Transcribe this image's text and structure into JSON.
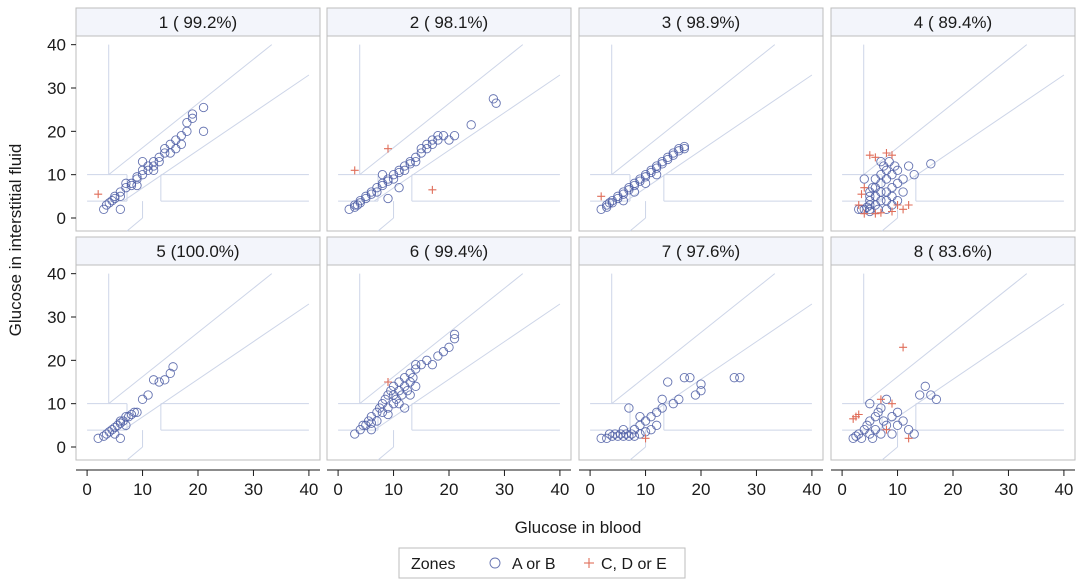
{
  "chart_data": {
    "type": "scatter",
    "layout": "facet-grid 2 rows x 4 columns",
    "xlabel": "Glucose in blood",
    "ylabel": "Glucose in interstitial fluid",
    "xlim": [
      -2,
      42
    ],
    "ylim": [
      -3,
      42
    ],
    "xticks": [
      0,
      10,
      20,
      30,
      40
    ],
    "yticks": [
      0,
      10,
      20,
      30,
      40
    ],
    "legend": {
      "title": "Zones",
      "placement": "bottom-center",
      "entries": [
        {
          "label": "A or B",
          "marker": "circle",
          "color": "#4a5aa3"
        },
        {
          "label": "C, D or E",
          "marker": "plus",
          "color": "#e06e5a"
        }
      ]
    },
    "panels": [
      {
        "title": "1 ( 99.2%)",
        "ok": [
          [
            3,
            2
          ],
          [
            3.5,
            3
          ],
          [
            4,
            3.5
          ],
          [
            4.5,
            4
          ],
          [
            5,
            4.5
          ],
          [
            5,
            5
          ],
          [
            6,
            5
          ],
          [
            6,
            6
          ],
          [
            7,
            7
          ],
          [
            7,
            8
          ],
          [
            8,
            7.5
          ],
          [
            8,
            8
          ],
          [
            9,
            9
          ],
          [
            9,
            9.5
          ],
          [
            10,
            10
          ],
          [
            10,
            11
          ],
          [
            11,
            12
          ],
          [
            11,
            11
          ],
          [
            12,
            12
          ],
          [
            12,
            13
          ],
          [
            13,
            14
          ],
          [
            13,
            13
          ],
          [
            14,
            15
          ],
          [
            14,
            16
          ],
          [
            15,
            15
          ],
          [
            15,
            17
          ],
          [
            16,
            16
          ],
          [
            16,
            18
          ],
          [
            17,
            17
          ],
          [
            17,
            19
          ],
          [
            18,
            20
          ],
          [
            18,
            22
          ],
          [
            19,
            23
          ],
          [
            19,
            24
          ],
          [
            21,
            25.5
          ],
          [
            21,
            20
          ],
          [
            6,
            2
          ],
          [
            10,
            13
          ],
          [
            9,
            7.5
          ],
          [
            12,
            11
          ]
        ],
        "bad": [
          [
            2,
            5.5
          ]
        ]
      },
      {
        "title": "2 ( 98.1%)",
        "ok": [
          [
            2,
            2
          ],
          [
            3,
            2.5
          ],
          [
            3,
            3
          ],
          [
            3.5,
            3
          ],
          [
            4,
            3.5
          ],
          [
            4,
            4
          ],
          [
            5,
            4.5
          ],
          [
            5,
            5
          ],
          [
            6,
            5.5
          ],
          [
            6,
            6
          ],
          [
            7,
            6
          ],
          [
            7,
            7
          ],
          [
            8,
            7.5
          ],
          [
            8,
            8
          ],
          [
            9,
            8.5
          ],
          [
            9,
            9
          ],
          [
            10,
            9
          ],
          [
            10,
            10
          ],
          [
            11,
            10.5
          ],
          [
            11,
            11
          ],
          [
            12,
            11
          ],
          [
            12,
            12
          ],
          [
            13,
            12.5
          ],
          [
            13,
            13
          ],
          [
            14,
            13
          ],
          [
            14,
            14
          ],
          [
            15,
            15
          ],
          [
            15,
            16
          ],
          [
            16,
            16
          ],
          [
            16,
            17
          ],
          [
            17,
            17
          ],
          [
            17,
            18
          ],
          [
            18,
            18
          ],
          [
            18,
            19
          ],
          [
            19,
            19
          ],
          [
            20,
            18
          ],
          [
            21,
            19
          ],
          [
            24,
            21.5
          ],
          [
            28,
            27.5
          ],
          [
            28.5,
            26.5
          ],
          [
            9,
            4.5
          ],
          [
            11,
            7
          ],
          [
            8,
            10
          ]
        ],
        "bad": [
          [
            3,
            11
          ],
          [
            9,
            16
          ],
          [
            17,
            6.5
          ]
        ]
      },
      {
        "title": "3 ( 98.9%)",
        "ok": [
          [
            2,
            2
          ],
          [
            3,
            2.5
          ],
          [
            3,
            3
          ],
          [
            3.5,
            3.5
          ],
          [
            4,
            3.5
          ],
          [
            4,
            4
          ],
          [
            5,
            4.5
          ],
          [
            5,
            5
          ],
          [
            6,
            5.5
          ],
          [
            6,
            6
          ],
          [
            7,
            6.5
          ],
          [
            7,
            7
          ],
          [
            8,
            7.5
          ],
          [
            8,
            8
          ],
          [
            9,
            8.5
          ],
          [
            9,
            9
          ],
          [
            10,
            9.5
          ],
          [
            10,
            10
          ],
          [
            11,
            10.5
          ],
          [
            11,
            11
          ],
          [
            12,
            11.5
          ],
          [
            12,
            12
          ],
          [
            13,
            12.5
          ],
          [
            13,
            13
          ],
          [
            14,
            13.5
          ],
          [
            14,
            14
          ],
          [
            15,
            14.5
          ],
          [
            15,
            15
          ],
          [
            16,
            15.5
          ],
          [
            16,
            16
          ],
          [
            17,
            16
          ],
          [
            17,
            16.5
          ],
          [
            6,
            4
          ],
          [
            8,
            6
          ],
          [
            10,
            8
          ],
          [
            12,
            10
          ]
        ],
        "bad": [
          [
            2,
            5
          ]
        ]
      },
      {
        "title": "4 ( 89.4%)",
        "ok": [
          [
            3,
            2
          ],
          [
            3.5,
            2
          ],
          [
            4,
            2
          ],
          [
            4.5,
            2.5
          ],
          [
            5,
            2
          ],
          [
            5,
            3
          ],
          [
            5,
            4
          ],
          [
            5,
            5
          ],
          [
            5,
            6
          ],
          [
            5.5,
            7
          ],
          [
            6,
            3
          ],
          [
            6,
            5
          ],
          [
            6,
            7
          ],
          [
            6,
            9
          ],
          [
            6.5,
            2
          ],
          [
            7,
            4
          ],
          [
            7,
            6
          ],
          [
            7,
            8
          ],
          [
            7,
            10
          ],
          [
            7.5,
            12
          ],
          [
            8,
            2
          ],
          [
            8,
            4
          ],
          [
            8,
            6
          ],
          [
            8,
            9
          ],
          [
            8,
            11
          ],
          [
            8.5,
            13
          ],
          [
            9,
            3
          ],
          [
            9,
            5
          ],
          [
            9,
            7
          ],
          [
            9,
            10
          ],
          [
            9.5,
            12
          ],
          [
            10,
            4
          ],
          [
            10,
            8
          ],
          [
            10,
            11
          ],
          [
            11,
            6
          ],
          [
            11,
            9
          ],
          [
            12,
            12
          ],
          [
            13,
            10
          ],
          [
            16,
            12.5
          ],
          [
            4,
            9
          ],
          [
            5,
            1.5
          ],
          [
            7,
            13
          ]
        ],
        "bad": [
          [
            3,
            3
          ],
          [
            3.5,
            5.5
          ],
          [
            4,
            7
          ],
          [
            5,
            14.5
          ],
          [
            6,
            14
          ],
          [
            8,
            15
          ],
          [
            9,
            14.5
          ],
          [
            10,
            3
          ],
          [
            11,
            2
          ],
          [
            12,
            3
          ],
          [
            6,
            1
          ],
          [
            9,
            1.5
          ],
          [
            4,
            1
          ],
          [
            7,
            1.2
          ]
        ]
      },
      {
        "title": "5 (100.0%)",
        "ok": [
          [
            2,
            2
          ],
          [
            3,
            2.5
          ],
          [
            3.5,
            3
          ],
          [
            4,
            3.5
          ],
          [
            4.5,
            4
          ],
          [
            5,
            4.5
          ],
          [
            5.5,
            5
          ],
          [
            6,
            5.5
          ],
          [
            6,
            6
          ],
          [
            6.5,
            6
          ],
          [
            7,
            7
          ],
          [
            7.5,
            7
          ],
          [
            8,
            7.5
          ],
          [
            8.5,
            8
          ],
          [
            9,
            8
          ],
          [
            10,
            11
          ],
          [
            11,
            12
          ],
          [
            12,
            15.5
          ],
          [
            13,
            15
          ],
          [
            14,
            15.5
          ],
          [
            15,
            17
          ],
          [
            15.5,
            18.5
          ],
          [
            6,
            2
          ],
          [
            5,
            3
          ],
          [
            7,
            5
          ]
        ],
        "bad": []
      },
      {
        "title": "6 ( 99.4%)",
        "ok": [
          [
            3,
            3
          ],
          [
            4,
            4
          ],
          [
            4.5,
            5
          ],
          [
            5,
            5
          ],
          [
            5.5,
            6
          ],
          [
            6,
            5.5
          ],
          [
            6,
            7
          ],
          [
            7,
            6
          ],
          [
            7,
            8
          ],
          [
            7.5,
            9
          ],
          [
            8,
            8
          ],
          [
            8,
            10
          ],
          [
            8.5,
            11
          ],
          [
            9,
            9
          ],
          [
            9,
            12
          ],
          [
            9.5,
            13
          ],
          [
            10,
            10
          ],
          [
            10,
            12
          ],
          [
            10,
            14
          ],
          [
            10.5,
            11
          ],
          [
            11,
            13
          ],
          [
            11,
            15
          ],
          [
            11.5,
            12
          ],
          [
            12,
            14
          ],
          [
            12,
            16
          ],
          [
            12.5,
            13
          ],
          [
            13,
            15
          ],
          [
            13,
            17
          ],
          [
            13.5,
            16
          ],
          [
            14,
            18
          ],
          [
            14,
            19
          ],
          [
            15,
            19
          ],
          [
            16,
            20
          ],
          [
            17,
            19
          ],
          [
            18,
            21
          ],
          [
            19,
            22
          ],
          [
            20,
            23
          ],
          [
            21,
            25
          ],
          [
            21,
            26
          ],
          [
            12,
            9
          ],
          [
            11,
            10
          ],
          [
            13,
            12
          ],
          [
            14,
            14
          ],
          [
            9,
            7.5
          ],
          [
            6,
            4
          ]
        ],
        "bad": [
          [
            9,
            15
          ]
        ]
      },
      {
        "title": "7 ( 97.6%)",
        "ok": [
          [
            2,
            2
          ],
          [
            3,
            2
          ],
          [
            3.5,
            3
          ],
          [
            4,
            2.5
          ],
          [
            4.5,
            3
          ],
          [
            5,
            2.5
          ],
          [
            5.5,
            3
          ],
          [
            6,
            2.5
          ],
          [
            6.5,
            3
          ],
          [
            7,
            2.5
          ],
          [
            7.5,
            3
          ],
          [
            8,
            4
          ],
          [
            8,
            2.5
          ],
          [
            9,
            3
          ],
          [
            9,
            5
          ],
          [
            10,
            3.5
          ],
          [
            10,
            6
          ],
          [
            11,
            7
          ],
          [
            11,
            4
          ],
          [
            12,
            8
          ],
          [
            12,
            5
          ],
          [
            13,
            9
          ],
          [
            13,
            11
          ],
          [
            14,
            15
          ],
          [
            15,
            10
          ],
          [
            16,
            11
          ],
          [
            17,
            16
          ],
          [
            18,
            16
          ],
          [
            19,
            12
          ],
          [
            20,
            13
          ],
          [
            20,
            14.5
          ],
          [
            26,
            16
          ],
          [
            27,
            16
          ],
          [
            7,
            9
          ],
          [
            6,
            4
          ],
          [
            9,
            7
          ]
        ],
        "bad": [
          [
            10,
            2
          ]
        ]
      },
      {
        "title": "8 ( 83.6%)",
        "ok": [
          [
            2,
            2
          ],
          [
            2.5,
            2.5
          ],
          [
            3,
            3
          ],
          [
            3.5,
            2
          ],
          [
            4,
            4
          ],
          [
            4.5,
            5
          ],
          [
            5,
            6
          ],
          [
            5,
            3
          ],
          [
            5.5,
            2
          ],
          [
            6,
            7
          ],
          [
            6,
            4
          ],
          [
            6.5,
            8
          ],
          [
            7,
            9
          ],
          [
            7,
            3
          ],
          [
            7.5,
            6
          ],
          [
            8,
            5
          ],
          [
            8,
            11
          ],
          [
            9,
            7
          ],
          [
            9,
            3
          ],
          [
            10,
            8
          ],
          [
            10,
            5
          ],
          [
            11,
            6
          ],
          [
            12,
            4
          ],
          [
            13,
            3
          ],
          [
            14,
            12
          ],
          [
            15,
            14
          ],
          [
            16,
            12
          ],
          [
            17,
            11
          ],
          [
            5,
            10
          ]
        ],
        "bad": [
          [
            2,
            6.5
          ],
          [
            2.5,
            7
          ],
          [
            3,
            7.5
          ],
          [
            7,
            11
          ],
          [
            8,
            4
          ],
          [
            9,
            10
          ],
          [
            11,
            23
          ],
          [
            12,
            2
          ]
        ]
      }
    ]
  }
}
